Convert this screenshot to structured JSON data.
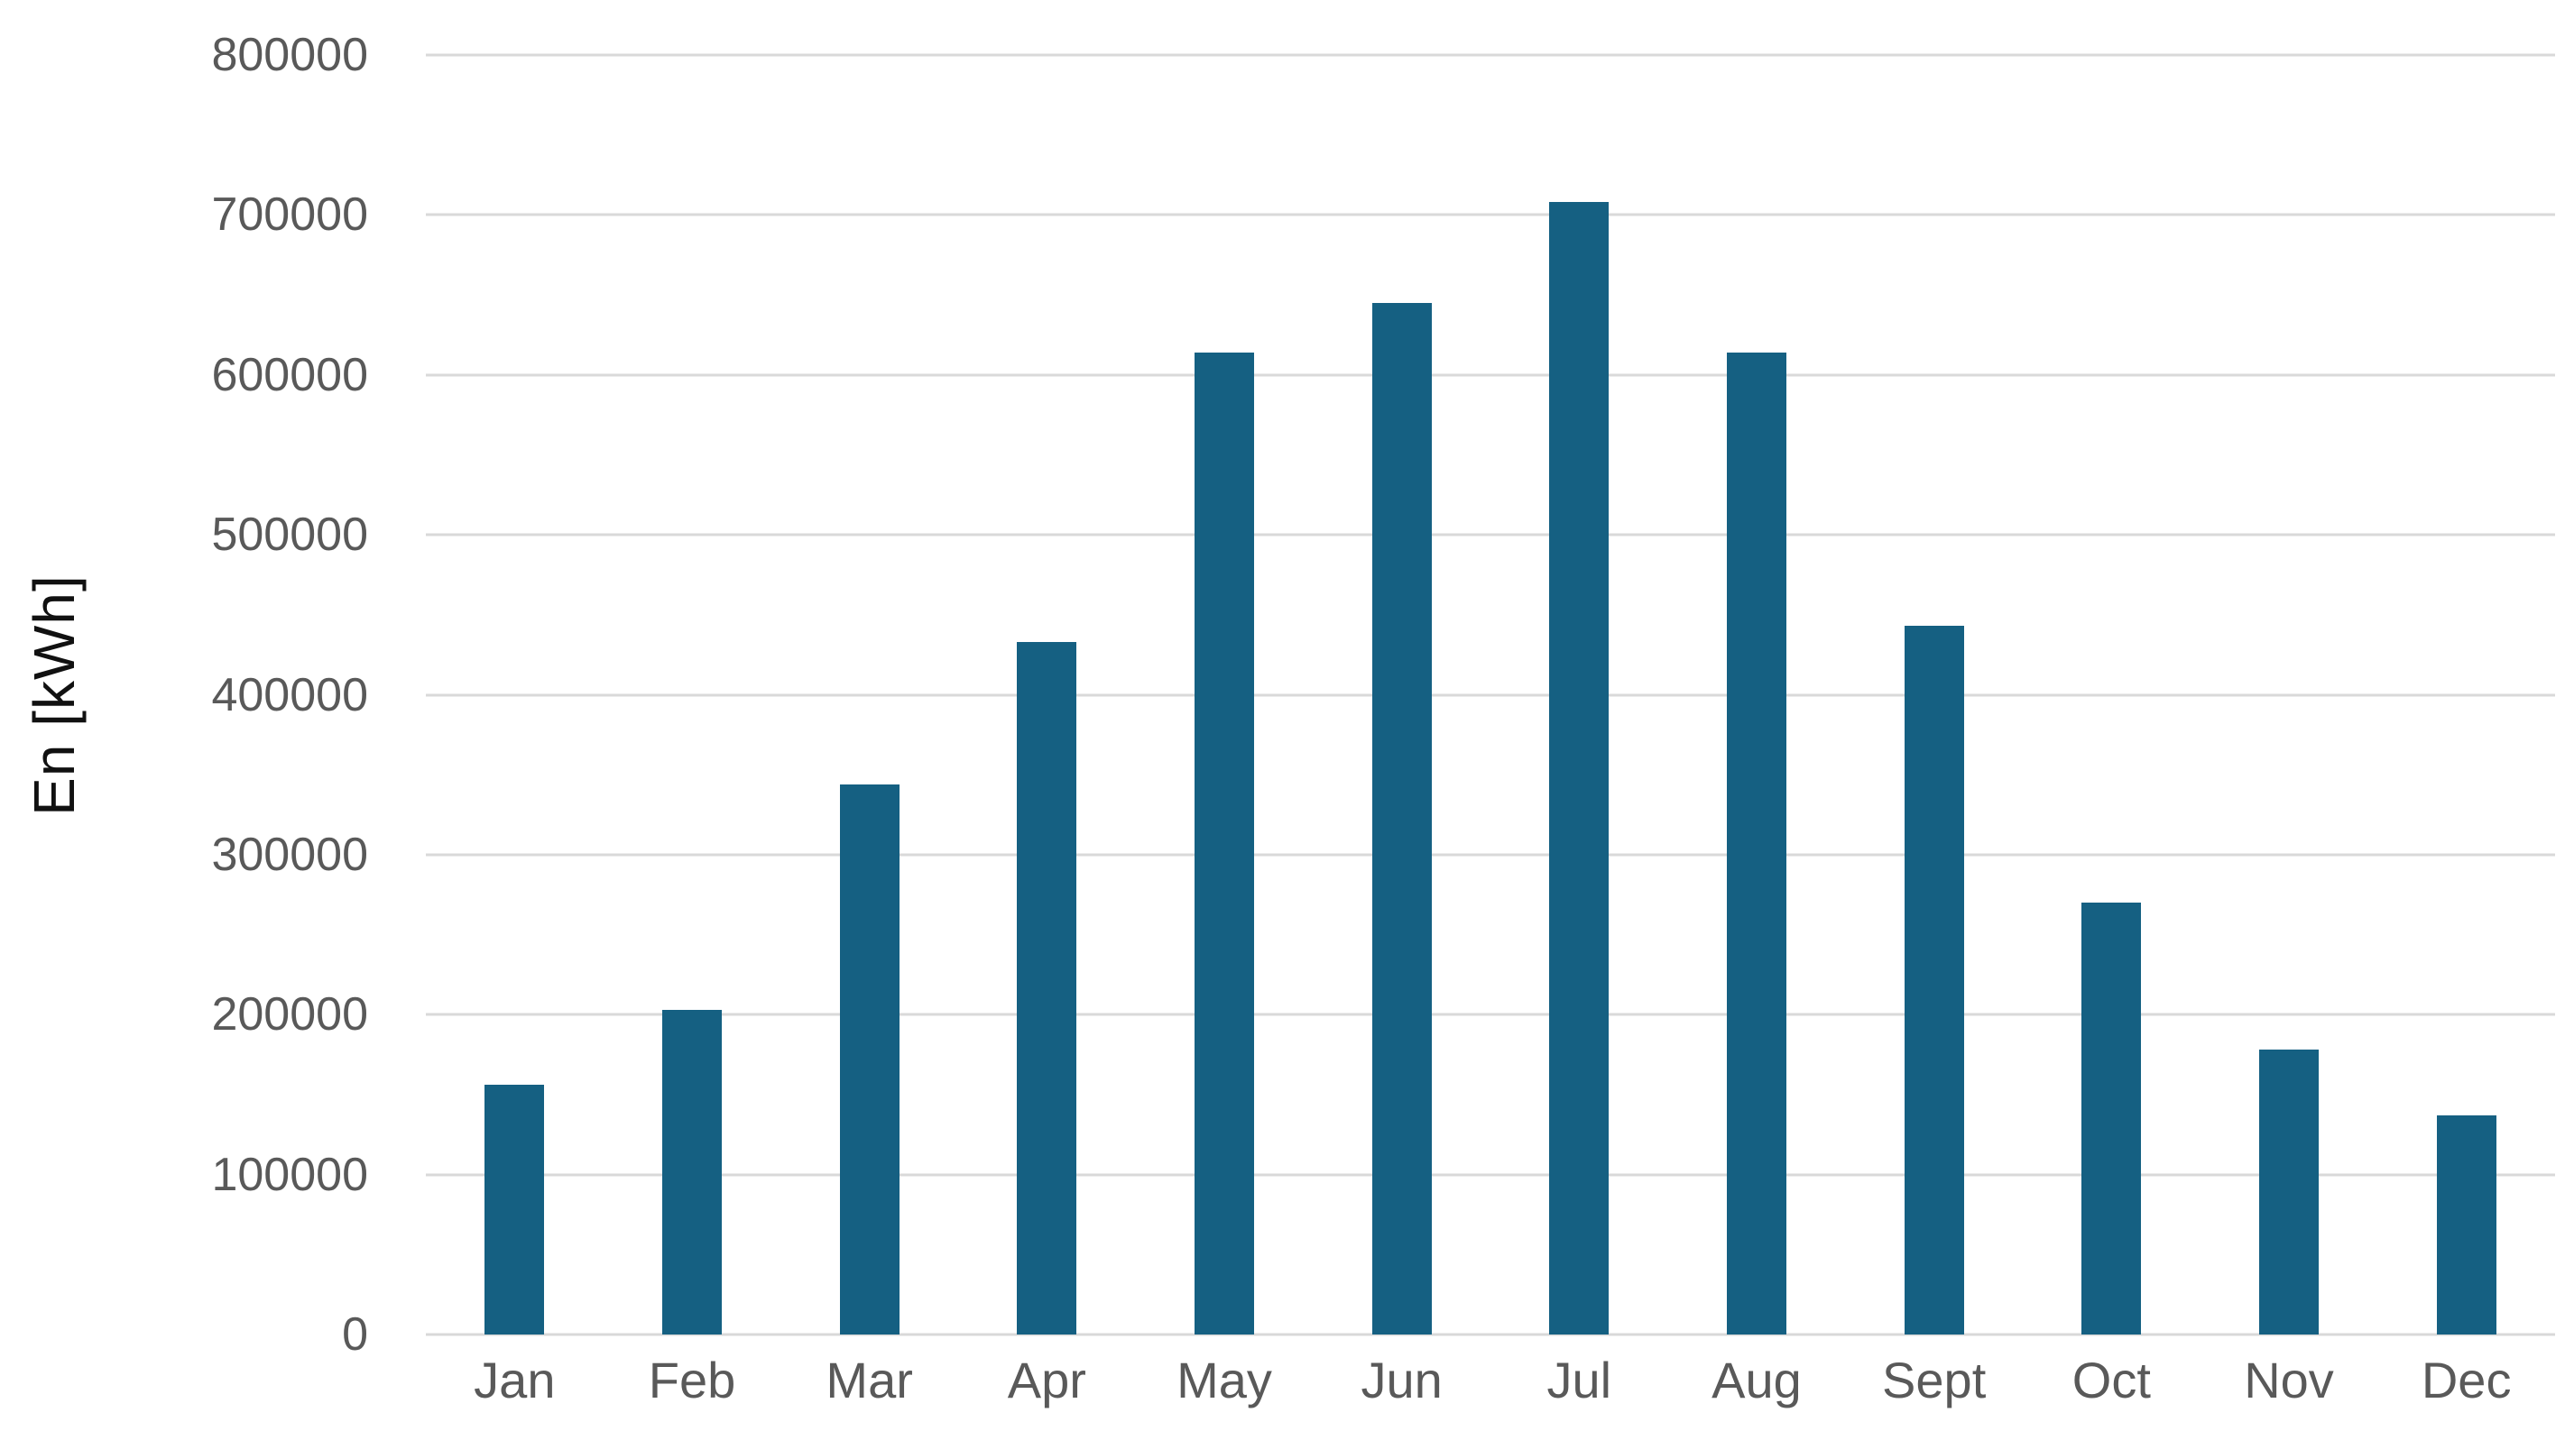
{
  "chart_data": {
    "type": "bar",
    "title": "",
    "xlabel": "",
    "ylabel": "En [kWh]",
    "categories": [
      "Jan",
      "Feb",
      "Mar",
      "Apr",
      "May",
      "Jun",
      "Jul",
      "Aug",
      "Sept",
      "Oct",
      "Nov",
      "Dec"
    ],
    "values": [
      156000,
      203000,
      344000,
      433000,
      614000,
      645000,
      708000,
      614000,
      443000,
      270000,
      178000,
      137000
    ],
    "ylim": [
      0,
      800000
    ],
    "ytick_step": 100000,
    "grid": true,
    "legend_position": "none",
    "colors": {
      "bar": "#156082",
      "gridline": "#d9d9d9",
      "tick_label": "#595959",
      "axis_title": "#111111",
      "background": "#ffffff"
    }
  }
}
